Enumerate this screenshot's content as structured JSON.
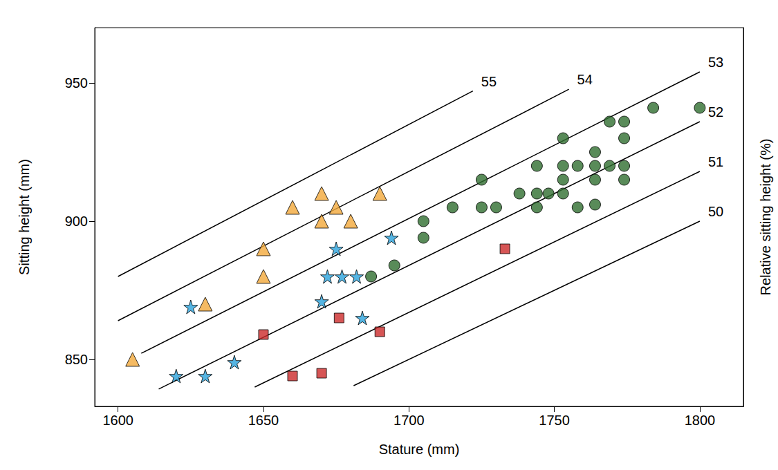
{
  "chart_data": {
    "type": "scatter",
    "x_label": "Stature (mm)",
    "y_label": "Sitting height (mm)",
    "y2_label": "Relative sitting height (%)",
    "xlim": [
      1592,
      1815
    ],
    "ylim": [
      833,
      970
    ],
    "xticks": [
      1600,
      1650,
      1700,
      1750,
      1800
    ],
    "yticks": [
      850,
      900,
      950
    ],
    "grid": false,
    "series": [
      {
        "color": "#f2a93b",
        "marker": "triangle",
        "x": [
          1605,
          1630,
          1650,
          1650,
          1660,
          1670,
          1670,
          1675,
          1680,
          1690
        ],
        "values": [
          850,
          870,
          880,
          890,
          905,
          910,
          900,
          905,
          900,
          910
        ]
      },
      {
        "color": "#2aa3dc",
        "marker": "star",
        "x": [
          1620,
          1625,
          1630,
          1640,
          1670,
          1672,
          1675,
          1677,
          1682,
          1684,
          1694
        ],
        "values": [
          844,
          869,
          844,
          849,
          871,
          880,
          890,
          880,
          880,
          865,
          894
        ]
      },
      {
        "color": "#cc2a2a",
        "marker": "square",
        "x": [
          1650,
          1660,
          1670,
          1676,
          1690,
          1733
        ],
        "values": [
          859,
          844,
          845,
          865,
          860,
          890
        ]
      },
      {
        "color": "#2f6e2f",
        "marker": "circle",
        "x": [
          1687,
          1695,
          1705,
          1705,
          1715,
          1725,
          1725,
          1730,
          1738,
          1744,
          1744,
          1744,
          1748,
          1753,
          1753,
          1753,
          1753,
          1758,
          1758,
          1764,
          1764,
          1764,
          1764,
          1769,
          1769,
          1774,
          1774,
          1774,
          1774,
          1784,
          1800
        ],
        "values": [
          880,
          884,
          900,
          894,
          905,
          915,
          905,
          905,
          910,
          920,
          910,
          905,
          910,
          930,
          920,
          915,
          910,
          920,
          905,
          925,
          920,
          915,
          906,
          920,
          936,
          936,
          930,
          920,
          915,
          941,
          941
        ]
      }
    ],
    "reference_lines": [
      {
        "value": 55,
        "x": [
          1600,
          1722
        ],
        "y": [
          880,
          947.1
        ]
      },
      {
        "value": 54,
        "x": [
          1600,
          1755
        ],
        "y": [
          864,
          947.7
        ]
      },
      {
        "value": 53,
        "x": [
          1608,
          1800
        ],
        "y": [
          852.2,
          954
        ]
      },
      {
        "value": 52,
        "x": [
          1614,
          1800
        ],
        "y": [
          839.3,
          936
        ]
      },
      {
        "value": 51,
        "x": [
          1647,
          1800
        ],
        "y": [
          840,
          918
        ]
      },
      {
        "value": 50,
        "x": [
          1681,
          1800
        ],
        "y": [
          840.5,
          900
        ]
      }
    ]
  }
}
